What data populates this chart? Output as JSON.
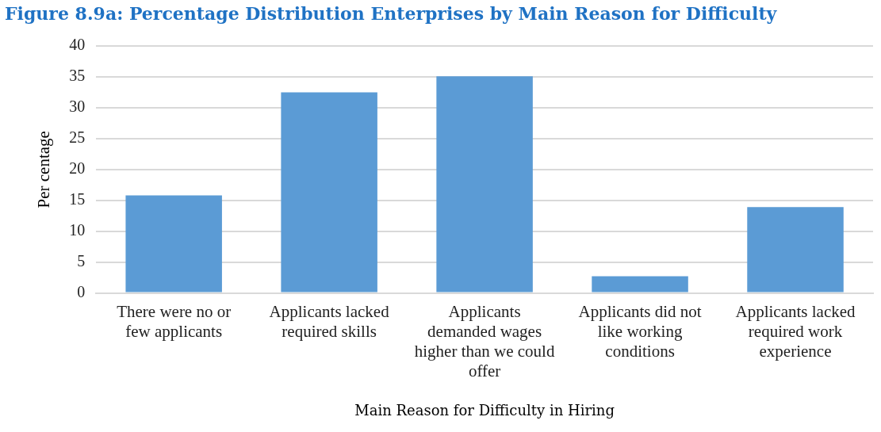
{
  "chart_data": {
    "type": "bar",
    "title": "Figure 8.9a: Percentage Distribution Enterprises by Main Reason for Difficulty",
    "xlabel": "Main Reason for Difficulty in Hiring",
    "ylabel": "Per centage",
    "categories": [
      "There were no or few applicants",
      "Applicants lacked required skills",
      "Applicants demanded wages higher than we could offer",
      "Applicants did not like working conditions",
      "Applicants lacked required work experience"
    ],
    "values": [
      15.8,
      32.5,
      35.1,
      2.7,
      13.9
    ],
    "color": "#5b9bd5",
    "ylim": [
      0,
      40
    ],
    "yticks": [
      0,
      5,
      10,
      15,
      20,
      25,
      30,
      35,
      40
    ],
    "grid": "y",
    "legend": false
  }
}
